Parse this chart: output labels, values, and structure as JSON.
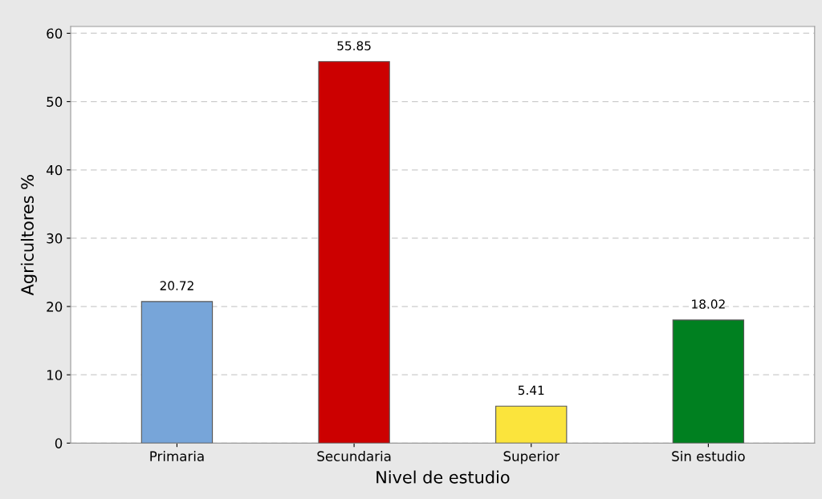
{
  "chart_data": {
    "type": "bar",
    "xlabel": "Nivel de estudio",
    "ylabel": "Agricultores %",
    "categories": [
      "Primaria",
      "Secundaria",
      "Superior",
      "Sin estudio"
    ],
    "values": [
      20.72,
      55.85,
      5.41,
      18.02
    ],
    "colors": [
      "#77a5d9",
      "#cc0000",
      "#fbe43c",
      "#008020"
    ],
    "ylim": [
      0,
      61
    ],
    "yticks": [
      0,
      10,
      20,
      30,
      40,
      50,
      60
    ],
    "grid": "y",
    "data_labels": true
  }
}
